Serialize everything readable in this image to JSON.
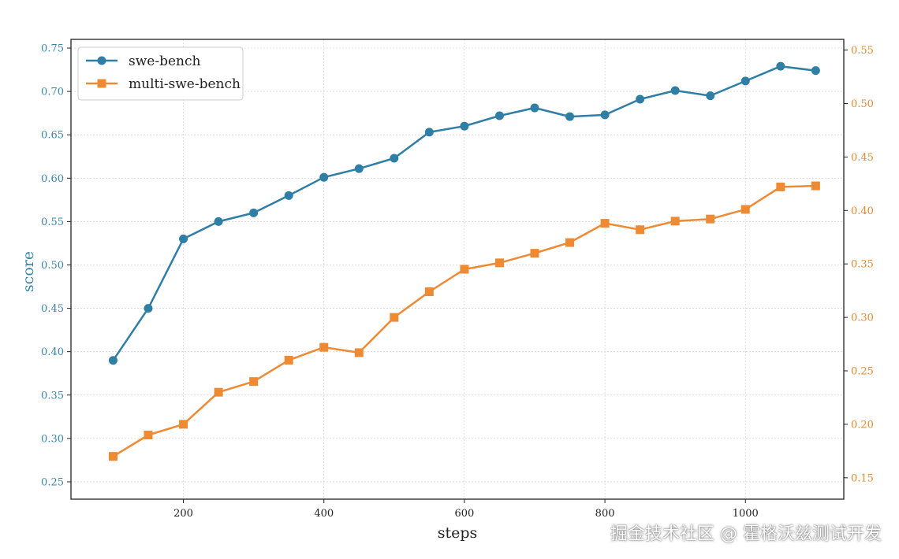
{
  "chart_data": {
    "type": "line",
    "xlabel": "steps",
    "ylabel": "score",
    "xlim": [
      40,
      1140
    ],
    "ylim_left": [
      0.23,
      0.76
    ],
    "ylim_right": [
      0.13,
      0.56
    ],
    "xticks": [
      200,
      400,
      600,
      800,
      1000
    ],
    "yticks_left": [
      "0.25",
      "0.30",
      "0.35",
      "0.40",
      "0.45",
      "0.50",
      "0.55",
      "0.60",
      "0.65",
      "0.70",
      "0.75"
    ],
    "yticks_right": [
      "0.15",
      "0.20",
      "0.25",
      "0.30",
      "0.35",
      "0.40",
      "0.45",
      "0.50",
      "0.55"
    ],
    "grid": true,
    "legend_position": "top-left",
    "series": [
      {
        "name": "swe-bench",
        "axis": "left",
        "color": "#2e7ea6",
        "marker": "circle",
        "x": [
          100,
          150,
          200,
          250,
          300,
          350,
          400,
          450,
          500,
          550,
          600,
          650,
          700,
          750,
          800,
          850,
          900,
          950,
          1000,
          1050,
          1100
        ],
        "y": [
          0.39,
          0.45,
          0.53,
          0.55,
          0.56,
          0.58,
          0.601,
          0.611,
          0.623,
          0.653,
          0.66,
          0.672,
          0.681,
          0.671,
          0.673,
          0.691,
          0.701,
          0.695,
          0.712,
          0.729,
          0.724
        ]
      },
      {
        "name": "multi-swe-bench",
        "axis": "right",
        "color": "#ee8a34",
        "marker": "square",
        "x": [
          100,
          150,
          200,
          250,
          300,
          350,
          400,
          450,
          500,
          550,
          600,
          650,
          700,
          750,
          800,
          850,
          900,
          950,
          1000,
          1050,
          1100
        ],
        "y": [
          0.17,
          0.19,
          0.2,
          0.23,
          0.24,
          0.26,
          0.272,
          0.267,
          0.3,
          0.324,
          0.345,
          0.351,
          0.36,
          0.37,
          0.388,
          0.382,
          0.39,
          0.392,
          0.401,
          0.422,
          0.423
        ]
      }
    ]
  },
  "watermark": "掘金技术社区 @ 霍格沃兹测试开发"
}
